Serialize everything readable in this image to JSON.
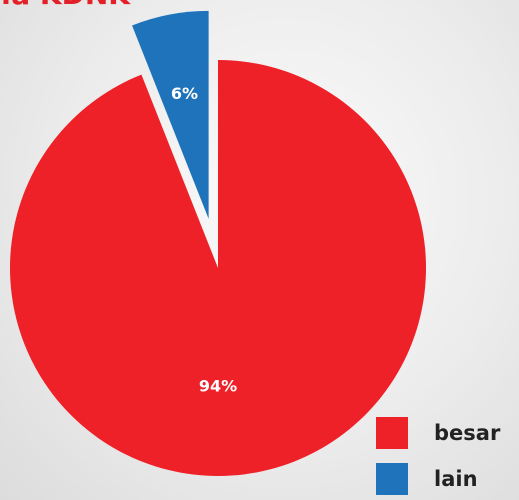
{
  "title": "..a KDNK",
  "colors": {
    "title": "#e32028",
    "besar": "#ee2028",
    "lain": "#1f73ba",
    "label_text": "#ffffff"
  },
  "chart_data": {
    "type": "pie",
    "title": "..a KDNK",
    "slices": [
      {
        "name": "besar",
        "value": 94,
        "label": "94%",
        "color": "#ee2028",
        "exploded": false
      },
      {
        "name": "lain",
        "value": 6,
        "label": "6%",
        "color": "#1f73ba",
        "exploded": true
      }
    ],
    "legend_position": "bottom-right"
  },
  "legend": {
    "items": [
      {
        "label": "besar",
        "color": "#ee2028"
      },
      {
        "label": "lain",
        "color": "#1f73ba"
      }
    ]
  }
}
